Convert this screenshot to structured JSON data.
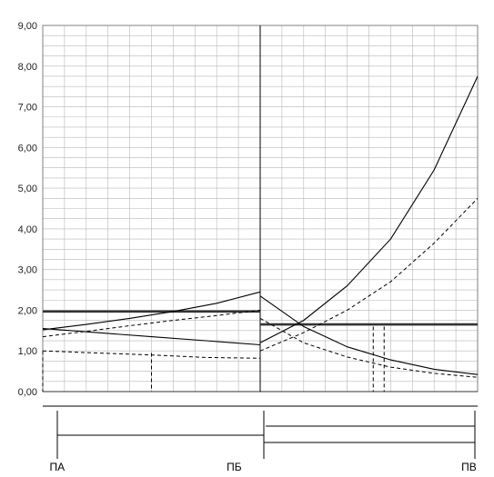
{
  "chart_data": {
    "type": "line",
    "ylim": [
      0,
      9
    ],
    "yticks": [
      "0,00",
      "1,00",
      "2,00",
      "3,00",
      "4,00",
      "5,00",
      "6,00",
      "7,00",
      "8,00",
      "9,00"
    ],
    "grid": true,
    "x_domain": [
      0,
      10
    ],
    "segment_boundaries": [
      0,
      5,
      10
    ],
    "station_labels": [
      {
        "text": "ПА",
        "x": 0.33
      },
      {
        "text": "ПБ",
        "x": 4.4
      },
      {
        "text": "ПВ",
        "x": 9.8
      }
    ],
    "series": [
      {
        "style": "solid-thick",
        "points": [
          [
            0,
            1.97
          ],
          [
            5,
            1.97
          ]
        ]
      },
      {
        "style": "solid-thick",
        "points": [
          [
            5,
            1.65
          ],
          [
            10,
            1.65
          ]
        ]
      },
      {
        "style": "solid",
        "points": [
          [
            0,
            1.52
          ],
          [
            1,
            1.65
          ],
          [
            2,
            1.8
          ],
          [
            3,
            1.97
          ],
          [
            4,
            2.17
          ],
          [
            5,
            2.45
          ]
        ]
      },
      {
        "style": "solid",
        "points": [
          [
            0,
            1.55
          ],
          [
            1.25,
            1.45
          ],
          [
            2.5,
            1.35
          ],
          [
            3.75,
            1.25
          ],
          [
            5,
            1.15
          ]
        ]
      },
      {
        "style": "dashed",
        "points": [
          [
            0,
            1.35
          ],
          [
            1,
            1.48
          ],
          [
            2,
            1.62
          ],
          [
            3,
            1.75
          ],
          [
            4,
            1.87
          ],
          [
            5,
            2.0
          ]
        ]
      },
      {
        "style": "dashed",
        "points": [
          [
            0,
            1.0
          ],
          [
            1.25,
            0.95
          ],
          [
            2.5,
            0.9
          ],
          [
            3.75,
            0.84
          ],
          [
            5,
            0.82
          ]
        ]
      },
      {
        "style": "solid",
        "points": [
          [
            5,
            1.2
          ],
          [
            6,
            1.75
          ],
          [
            7,
            2.6
          ],
          [
            8,
            3.75
          ],
          [
            9,
            5.45
          ],
          [
            10,
            7.75
          ]
        ]
      },
      {
        "style": "dashed",
        "points": [
          [
            5,
            1.0
          ],
          [
            6,
            1.45
          ],
          [
            7,
            2.0
          ],
          [
            8,
            2.7
          ],
          [
            9,
            3.65
          ],
          [
            10,
            4.75
          ]
        ]
      },
      {
        "style": "solid",
        "points": [
          [
            5,
            2.35
          ],
          [
            6,
            1.6
          ],
          [
            7,
            1.1
          ],
          [
            8,
            0.78
          ],
          [
            9,
            0.55
          ],
          [
            10,
            0.42
          ]
        ]
      },
      {
        "style": "dashed",
        "points": [
          [
            5,
            1.8
          ],
          [
            6,
            1.2
          ],
          [
            7,
            0.85
          ],
          [
            8,
            0.6
          ],
          [
            9,
            0.45
          ],
          [
            10,
            0.35
          ]
        ]
      }
    ],
    "dashed_drops": [
      {
        "x": 0,
        "y": 1.0
      },
      {
        "x": 2.5,
        "y": 0.95
      },
      {
        "x": 7.6,
        "y": 1.6
      },
      {
        "x": 7.85,
        "y": 1.6
      }
    ]
  }
}
